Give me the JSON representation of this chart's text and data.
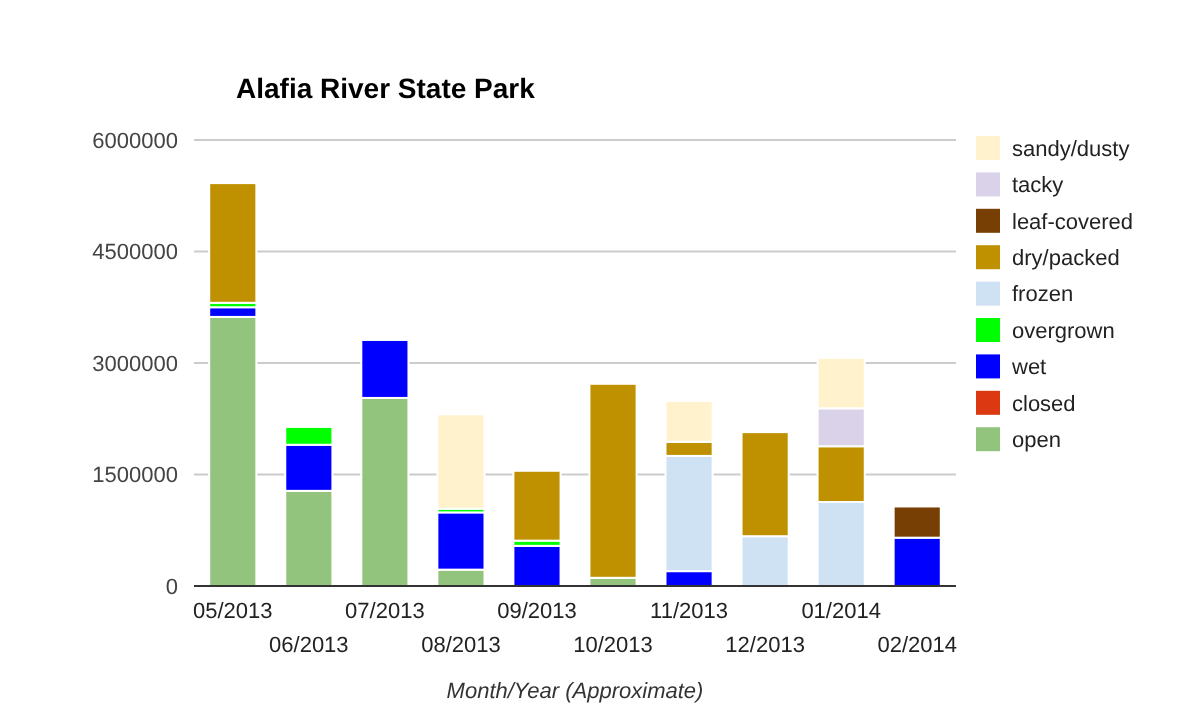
{
  "chart_data": {
    "type": "bar",
    "title": "Alafia River State Park",
    "xlabel": "Month/Year (Approximate)",
    "stacked": true,
    "legend": "right",
    "grid": "y",
    "categories": [
      "05/2013",
      "06/2013",
      "07/2013",
      "08/2013",
      "09/2013",
      "10/2013",
      "11/2013",
      "12/2013",
      "01/2014",
      "02/2014"
    ],
    "ylim": [
      0,
      6000000
    ],
    "yticks": [
      0,
      1500000,
      3000000,
      4500000,
      6000000
    ],
    "series": [
      {
        "name": "open",
        "color": "#93c47d",
        "values": [
          3620000,
          1280000,
          2530000,
          220000,
          0,
          110000,
          0,
          0,
          0,
          0
        ]
      },
      {
        "name": "closed",
        "color": "#dc3912",
        "values": [
          0,
          0,
          0,
          0,
          0,
          0,
          0,
          0,
          0,
          0
        ]
      },
      {
        "name": "wet",
        "color": "#0000ff",
        "values": [
          130000,
          620000,
          780000,
          770000,
          540000,
          0,
          200000,
          0,
          0,
          650000
        ]
      },
      {
        "name": "overgrown",
        "color": "#00ff00",
        "values": [
          60000,
          240000,
          0,
          50000,
          70000,
          0,
          0,
          0,
          0,
          0
        ]
      },
      {
        "name": "frozen",
        "color": "#cfe2f3",
        "values": [
          0,
          0,
          0,
          0,
          0,
          0,
          1550000,
          670000,
          1130000,
          0
        ]
      },
      {
        "name": "dry/packed",
        "color": "#bf9000",
        "values": [
          1610000,
          0,
          0,
          0,
          940000,
          2610000,
          190000,
          1400000,
          750000,
          0
        ]
      },
      {
        "name": "leaf-covered",
        "color": "#783f04",
        "values": [
          0,
          0,
          0,
          0,
          0,
          0,
          0,
          0,
          0,
          420000
        ]
      },
      {
        "name": "tacky",
        "color": "#d9d2e9",
        "values": [
          0,
          0,
          0,
          0,
          0,
          0,
          0,
          0,
          510000,
          0
        ]
      },
      {
        "name": "sandy/dusty",
        "color": "#fff2cc",
        "values": [
          0,
          0,
          0,
          1270000,
          0,
          0,
          550000,
          0,
          680000,
          0
        ]
      }
    ]
  }
}
